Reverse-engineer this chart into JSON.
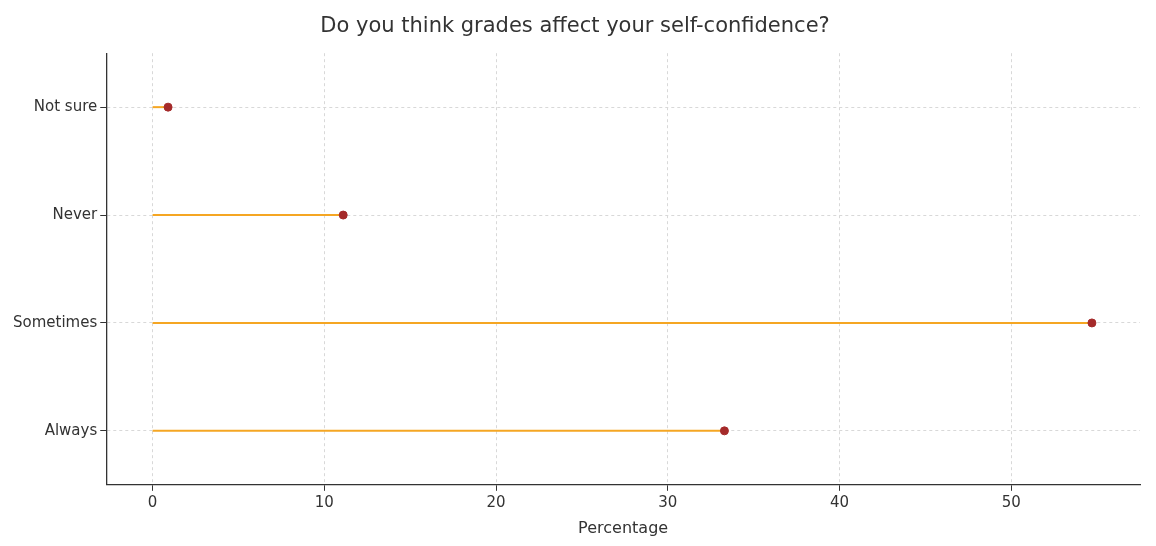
{
  "chart_data": {
    "type": "lollipop",
    "orientation": "horizontal",
    "title": "Do you think grades affect your self-confidence?",
    "xlabel": "Percentage",
    "categories": [
      "Not sure",
      "Never",
      "Sometimes",
      "Always"
    ],
    "values": [
      0.9,
      11.1,
      54.7,
      33.3
    ],
    "color": "#f5a623",
    "colors": [
      "#a52a2a",
      "#a52a2a",
      "#a52a2a",
      "#a52a2a"
    ],
    "xlim": [
      -2.7,
      57.5
    ],
    "xticks": [
      0,
      10,
      20,
      30,
      40,
      50
    ],
    "grid": true,
    "legend": false,
    "marker": "circle"
  }
}
